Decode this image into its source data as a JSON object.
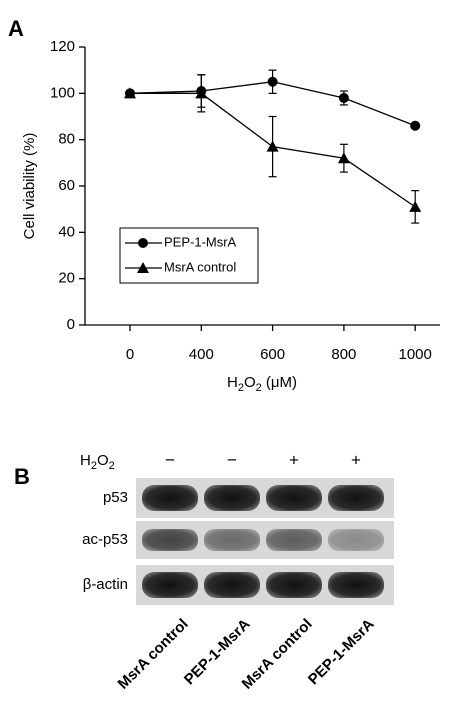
{
  "chart_data": {
    "type": "line",
    "panel_label": "A",
    "y_label": "Cell viability (%)",
    "x_label": [
      "H",
      "2",
      "O",
      "2",
      " (μM)"
    ],
    "categories": [
      "0",
      "400",
      "600",
      "800",
      "1000"
    ],
    "ylim": [
      0,
      120
    ],
    "yticks": [
      0,
      20,
      40,
      60,
      80,
      100,
      120
    ],
    "grid": false,
    "legend": "lower left",
    "series": [
      {
        "name": "PEP-1-MsrA",
        "color": "#000000",
        "marker": "circle",
        "values": [
          100,
          101,
          105,
          98,
          86
        ],
        "errors": [
          1,
          7,
          5,
          3,
          1
        ]
      },
      {
        "name": "MsrA control",
        "color": "#000000",
        "marker": "triangle",
        "values": [
          100,
          100,
          77,
          72,
          51
        ],
        "errors": [
          1,
          8,
          13,
          6,
          7
        ]
      }
    ]
  },
  "blot": {
    "panel_label": "B",
    "treatment_label": [
      "H",
      "2",
      "O",
      "2"
    ],
    "treatment": [
      "−",
      "−",
      "+",
      "+"
    ],
    "rows": [
      "p53",
      "ac-p53",
      "β-actin"
    ],
    "lanes": [
      "MsrA control",
      "PEP-1-MsrA",
      "MsrA control",
      "PEP-1-MsrA"
    ]
  }
}
